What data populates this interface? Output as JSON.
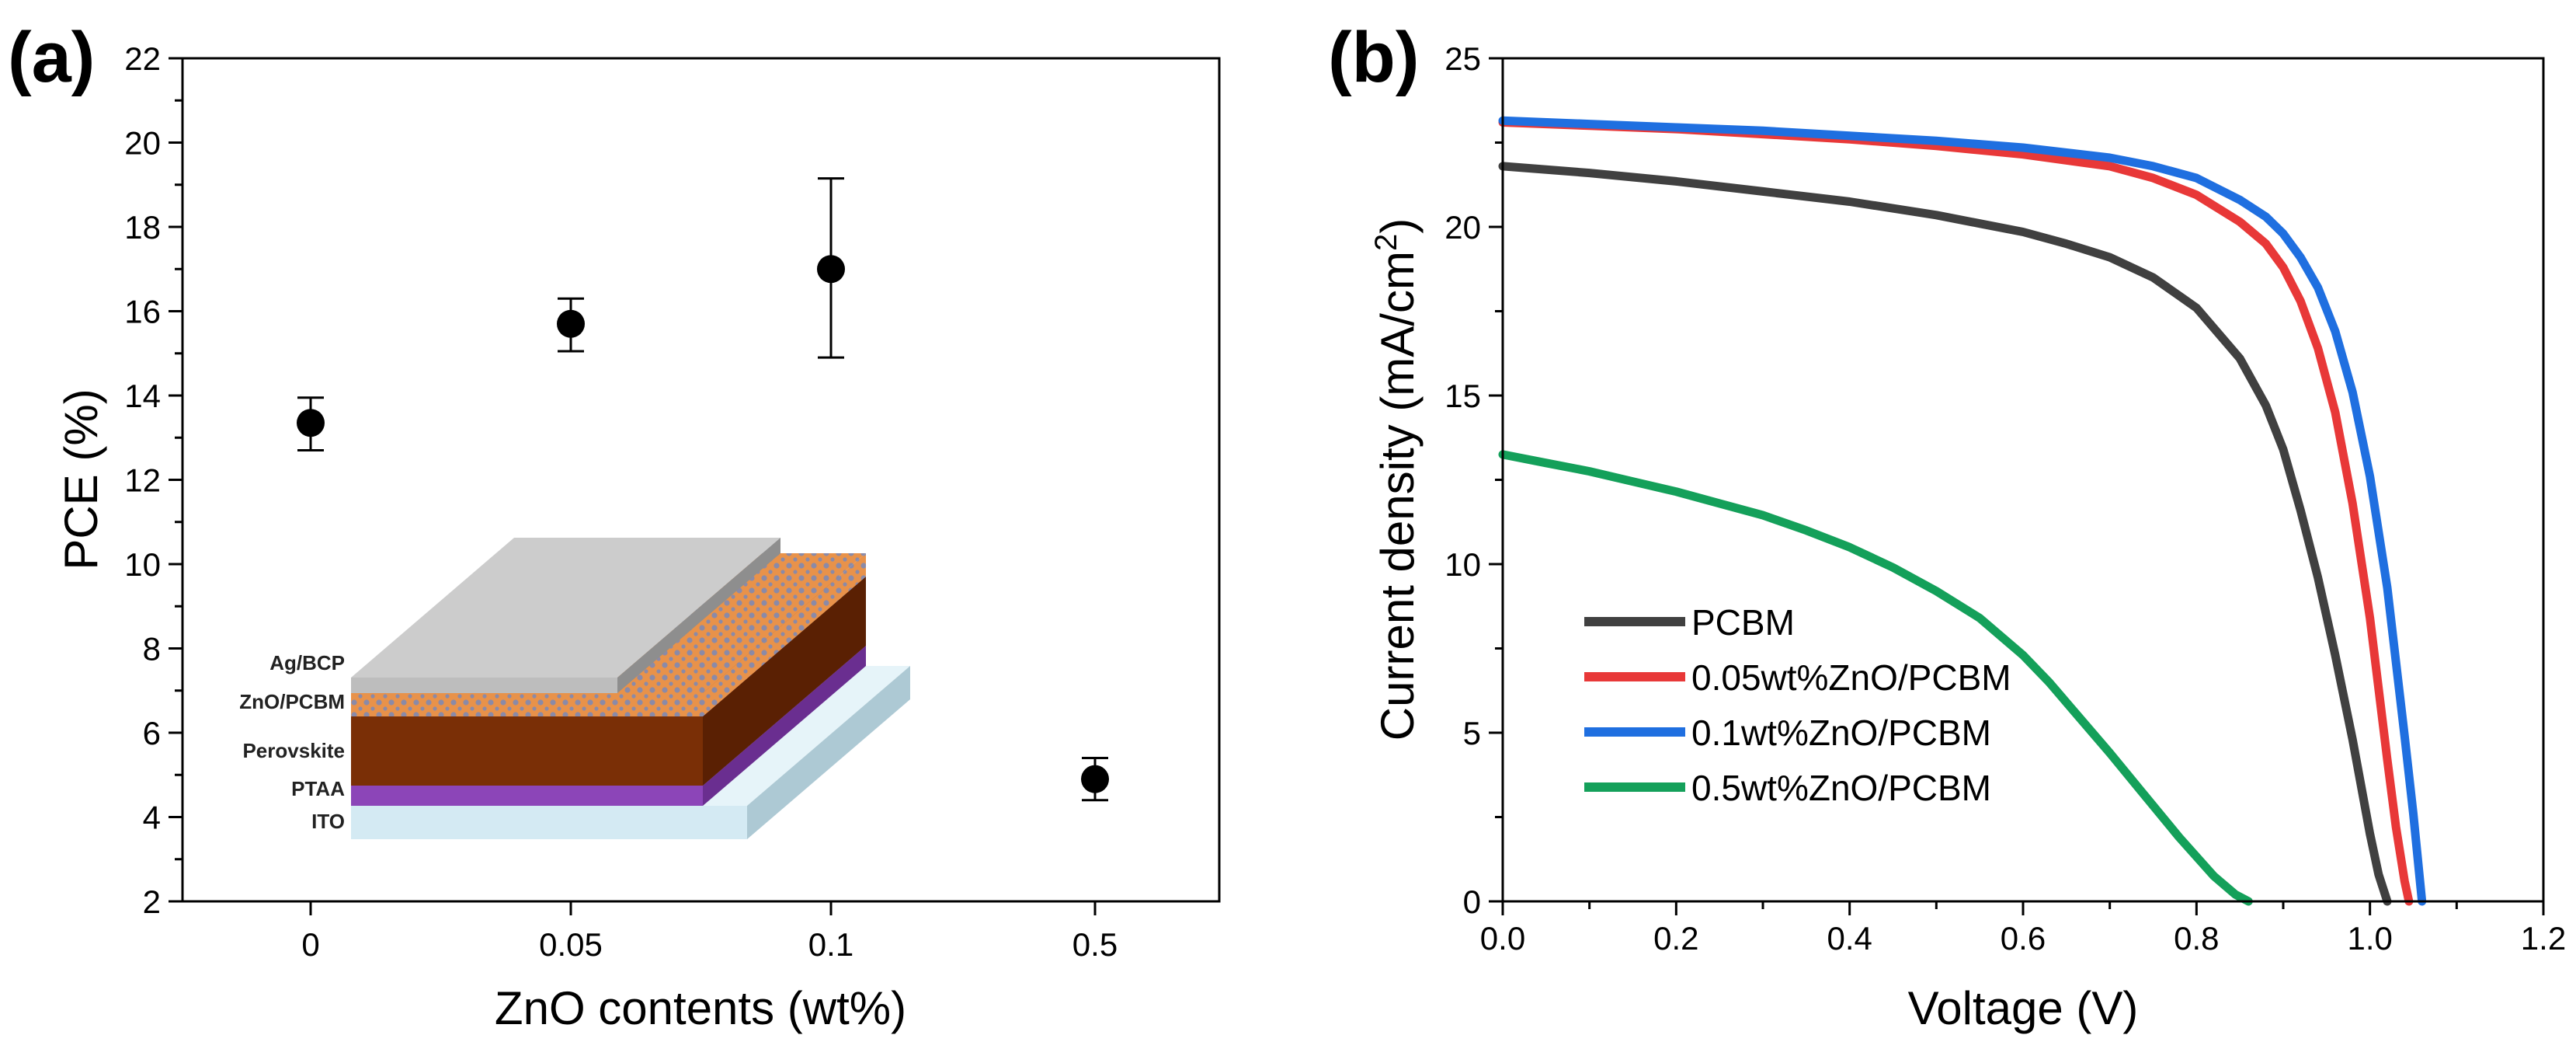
{
  "chart_data": [
    {
      "panel_label": "(a)",
      "type": "scatter",
      "title": "",
      "xlabel": "ZnO contents (wt%)",
      "ylabel": "PCE (%)",
      "categories": [
        "0",
        "0.05",
        "0.1",
        "0.5"
      ],
      "values": [
        13.35,
        15.7,
        17.0,
        4.9
      ],
      "error_low": [
        12.7,
        15.05,
        14.9,
        4.4
      ],
      "error_high": [
        13.95,
        16.3,
        19.15,
        5.4
      ],
      "ylim": [
        2,
        22
      ],
      "yticks": [
        "2",
        "4",
        "6",
        "8",
        "10",
        "12",
        "14",
        "16",
        "18",
        "20",
        "22"
      ],
      "grid": false,
      "inset": {
        "layers": [
          "Ag/BCP",
          "ZnO/PCBM",
          "Perovskite",
          "PTAA",
          "ITO"
        ]
      }
    },
    {
      "panel_label": "(b)",
      "type": "line",
      "title": "",
      "xlabel": "Voltage (V)",
      "ylabel_main": "Current density (mA/cm",
      "ylabel_sup": "2",
      "ylabel_close": ")",
      "xlim": [
        0.0,
        1.2
      ],
      "ylim": [
        0,
        25
      ],
      "xticks": [
        "0.0",
        "0.2",
        "0.4",
        "0.6",
        "0.8",
        "1.0",
        "1.2"
      ],
      "yticks": [
        "0",
        "5",
        "10",
        "15",
        "20",
        "25"
      ],
      "grid": false,
      "legend_position": "bottom-left",
      "series": [
        {
          "name": "PCBM",
          "color": "#404040",
          "x": [
            0,
            0.1,
            0.2,
            0.3,
            0.4,
            0.5,
            0.55,
            0.6,
            0.65,
            0.7,
            0.75,
            0.8,
            0.85,
            0.88,
            0.9,
            0.92,
            0.94,
            0.96,
            0.98,
            1.0,
            1.01,
            1.02
          ],
          "y": [
            21.8,
            21.6,
            21.35,
            21.05,
            20.75,
            20.35,
            20.1,
            19.85,
            19.5,
            19.1,
            18.5,
            17.6,
            16.1,
            14.7,
            13.4,
            11.6,
            9.6,
            7.3,
            4.8,
            2.0,
            0.8,
            0
          ]
        },
        {
          "name": "0.05wt%ZnO/PCBM",
          "color": "#e83838",
          "x": [
            0,
            0.1,
            0.2,
            0.3,
            0.4,
            0.5,
            0.6,
            0.7,
            0.75,
            0.8,
            0.85,
            0.88,
            0.9,
            0.92,
            0.94,
            0.96,
            0.98,
            1.0,
            1.02,
            1.03,
            1.04,
            1.045
          ],
          "y": [
            23.1,
            23.0,
            22.9,
            22.75,
            22.6,
            22.4,
            22.15,
            21.8,
            21.45,
            20.95,
            20.15,
            19.5,
            18.8,
            17.8,
            16.4,
            14.5,
            11.8,
            8.4,
            4.2,
            2.2,
            0.6,
            0
          ]
        },
        {
          "name": "0.1wt%ZnO/PCBM",
          "color": "#1f6fe0",
          "x": [
            0,
            0.1,
            0.2,
            0.3,
            0.4,
            0.5,
            0.6,
            0.7,
            0.75,
            0.8,
            0.85,
            0.88,
            0.9,
            0.92,
            0.94,
            0.96,
            0.98,
            1.0,
            1.02,
            1.04,
            1.05,
            1.06
          ],
          "y": [
            23.15,
            23.05,
            22.95,
            22.85,
            22.7,
            22.55,
            22.35,
            22.05,
            21.8,
            21.45,
            20.8,
            20.3,
            19.8,
            19.1,
            18.2,
            16.9,
            15.1,
            12.6,
            9.3,
            4.9,
            2.6,
            0
          ]
        },
        {
          "name": "0.5wt%ZnO/PCBM",
          "color": "#14a05a",
          "x": [
            0,
            0.05,
            0.1,
            0.15,
            0.2,
            0.25,
            0.3,
            0.35,
            0.4,
            0.45,
            0.5,
            0.55,
            0.6,
            0.63,
            0.66,
            0.7,
            0.74,
            0.78,
            0.82,
            0.845,
            0.86
          ],
          "y": [
            13.25,
            13.0,
            12.75,
            12.45,
            12.15,
            11.8,
            11.45,
            11.0,
            10.5,
            9.9,
            9.2,
            8.4,
            7.3,
            6.5,
            5.6,
            4.4,
            3.15,
            1.9,
            0.75,
            0.2,
            0
          ]
        }
      ]
    }
  ]
}
